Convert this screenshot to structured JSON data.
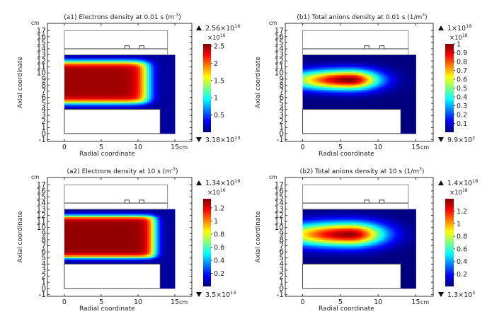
{
  "chart_data": [
    {
      "id": "a1",
      "type": "heatmap",
      "title": "(a1) Electrons density at 0.01 s (m",
      "title_sup": "-3",
      "title_end": ")",
      "xlabel": "Radial coordinate",
      "ylabel": "Axial coordinate",
      "x_unit": "cm",
      "y_unit": "cm",
      "xlim": [
        -2.3,
        17.3
      ],
      "ylim": [
        -1.3,
        18.2
      ],
      "x_ticks": [
        "0",
        "5",
        "10",
        "15"
      ],
      "y_ticks": [
        "-1",
        "0",
        "1",
        "2",
        "3",
        "4",
        "5",
        "6",
        "7",
        "8",
        "9",
        "10",
        "11",
        "12",
        "13",
        "14",
        "15",
        "16",
        "17"
      ],
      "field": "electrons",
      "colorbar": {
        "max_label": "2.56×10",
        "max_exp": "16",
        "scale_label": "×10",
        "scale_exp": "16",
        "min_label": "3.18×10",
        "min_exp": "13",
        "range": [
          0,
          2.56
        ],
        "ticks": [
          {
            "v": 0.5,
            "label": "0.5"
          },
          {
            "v": 1,
            "label": "1"
          },
          {
            "v": 1.5,
            "label": "1.5"
          },
          {
            "v": 2,
            "label": "2"
          },
          {
            "v": 2.5,
            "label": "2.5"
          }
        ]
      }
    },
    {
      "id": "b1",
      "type": "heatmap",
      "title": "(b1) Total anions density at 0.01 s (1/m",
      "title_sup": "3",
      "title_end": ")",
      "xlabel": "Radial coordinate",
      "ylabel": "Axial coordinate",
      "x_unit": "cm",
      "y_unit": "cm",
      "xlim": [
        -2.3,
        17.3
      ],
      "ylim": [
        -1.3,
        18.2
      ],
      "x_ticks": [
        "0",
        "5",
        "10",
        "15"
      ],
      "y_ticks": [
        "-1",
        "0",
        "1",
        "2",
        "3",
        "4",
        "5",
        "6",
        "7",
        "8",
        "9",
        "10",
        "11",
        "12",
        "13",
        "14",
        "15",
        "16",
        "17"
      ],
      "field": "anions",
      "colorbar": {
        "max_label": "1×10",
        "max_exp": "18",
        "scale_label": "×10",
        "scale_exp": "18",
        "min_label": "9.9×10",
        "min_exp": "2",
        "range": [
          0,
          1
        ],
        "ticks": [
          {
            "v": 0.1,
            "label": "0.1"
          },
          {
            "v": 0.2,
            "label": "0.2"
          },
          {
            "v": 0.3,
            "label": "0.3"
          },
          {
            "v": 0.4,
            "label": "0.4"
          },
          {
            "v": 0.5,
            "label": "0.5"
          },
          {
            "v": 0.6,
            "label": "0.6"
          },
          {
            "v": 0.7,
            "label": "0.7"
          },
          {
            "v": 0.8,
            "label": "0.8"
          },
          {
            "v": 0.9,
            "label": "0.9"
          },
          {
            "v": 1,
            "label": "1"
          }
        ]
      }
    },
    {
      "id": "a2",
      "type": "heatmap",
      "title": "(a2) Electrons density at 10 s (m",
      "title_sup": "-3",
      "title_end": ")",
      "xlabel": "Radial coordinate",
      "ylabel": "Axial coordinate",
      "x_unit": "cm",
      "y_unit": "cm",
      "xlim": [
        -2.3,
        17.3
      ],
      "ylim": [
        -1.3,
        18.2
      ],
      "x_ticks": [
        "0",
        "5",
        "10",
        "15"
      ],
      "y_ticks": [
        "-1",
        "0",
        "1",
        "2",
        "3",
        "4",
        "5",
        "6",
        "7",
        "8",
        "9",
        "10",
        "11",
        "12",
        "13",
        "14",
        "15",
        "16",
        "17"
      ],
      "field": "electrons2",
      "colorbar": {
        "max_label": "1.34×10",
        "max_exp": "16",
        "scale_label": "×10",
        "scale_exp": "16",
        "min_label": "3.5×10",
        "min_exp": "13",
        "range": [
          0,
          1.34
        ],
        "ticks": [
          {
            "v": 0.2,
            "label": "0.2"
          },
          {
            "v": 0.4,
            "label": "0.4"
          },
          {
            "v": 0.6,
            "label": "0.6"
          },
          {
            "v": 0.8,
            "label": "0.8"
          },
          {
            "v": 1,
            "label": "1"
          },
          {
            "v": 1.2,
            "label": "1.2"
          }
        ]
      }
    },
    {
      "id": "b2",
      "type": "heatmap",
      "title": "(b2) Total anions density at 10 s (1/m",
      "title_sup": "3",
      "title_end": ")",
      "xlabel": "Radial coordinate",
      "ylabel": "Axial coordinate",
      "x_unit": "cm",
      "y_unit": "cm",
      "xlim": [
        -2.3,
        17.3
      ],
      "ylim": [
        -1.3,
        18.2
      ],
      "x_ticks": [
        "0",
        "5",
        "10",
        "15"
      ],
      "y_ticks": [
        "-1",
        "0",
        "1",
        "2",
        "3",
        "4",
        "5",
        "6",
        "7",
        "8",
        "9",
        "10",
        "11",
        "12",
        "13",
        "14",
        "15",
        "16",
        "17"
      ],
      "field": "anions2",
      "colorbar": {
        "max_label": "1.4×10",
        "max_exp": "18",
        "scale_label": "×10",
        "scale_exp": "18",
        "min_label": "1.3×10",
        "min_exp": "3",
        "range": [
          0,
          1.4
        ],
        "ticks": [
          {
            "v": 0.2,
            "label": "0.2"
          },
          {
            "v": 0.4,
            "label": "0.4"
          },
          {
            "v": 0.6,
            "label": "0.6"
          },
          {
            "v": 0.8,
            "label": "0.8"
          },
          {
            "v": 1,
            "label": "1"
          },
          {
            "v": 1.2,
            "label": "1.2"
          }
        ]
      }
    }
  ],
  "geometry": {
    "plasma_region": {
      "r": [
        0,
        15
      ],
      "z": [
        4,
        13
      ]
    },
    "lower_block": {
      "r": [
        0,
        13
      ],
      "z": [
        0,
        4
      ]
    },
    "upper_block": {
      "r": [
        0,
        14
      ],
      "z": [
        13,
        17
      ]
    },
    "divider_z": 14,
    "bumps_r": [
      [
        8.2,
        8.8
      ],
      [
        10.2,
        10.8
      ]
    ],
    "bump_height": 0.5
  },
  "colormap": [
    "#00007f",
    "#0000ff",
    "#007fff",
    "#00ffff",
    "#7fff7f",
    "#ffff00",
    "#ff7f00",
    "#ff0000",
    "#7f0000"
  ]
}
